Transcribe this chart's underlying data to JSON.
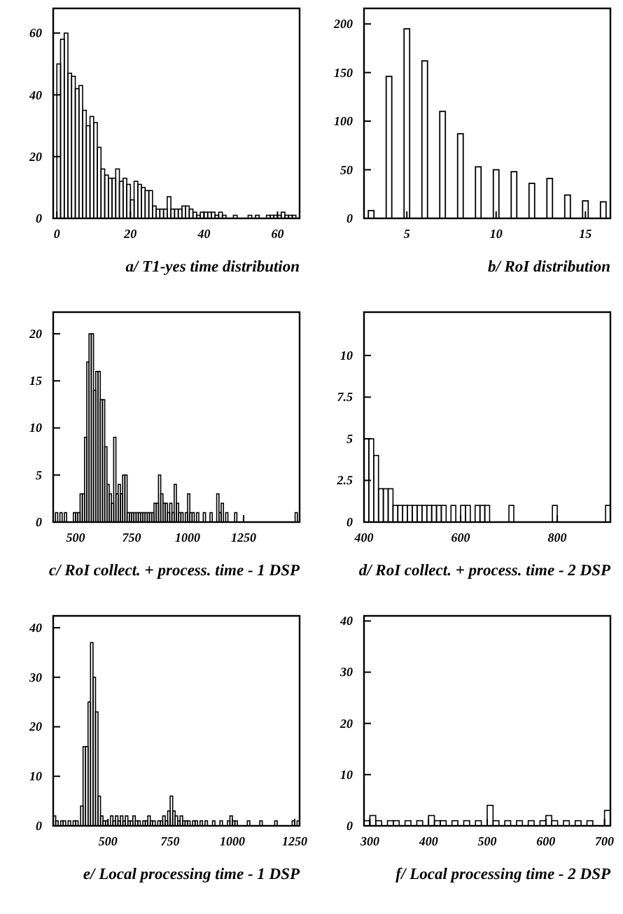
{
  "chart_data": [
    {
      "type": "histogram",
      "xlabel": "a/ T1-yes time distribution",
      "xlim": [
        -1,
        66
      ],
      "xticks": [
        0,
        20,
        40,
        60
      ],
      "ylim": [
        0,
        68
      ],
      "yticks": [
        0,
        20,
        40,
        60
      ],
      "color": "#000000",
      "bins": [
        0,
        1,
        2,
        3,
        4,
        5,
        6,
        7,
        8,
        9,
        10,
        11,
        12,
        13,
        14,
        15,
        16,
        17,
        18,
        19,
        20,
        21,
        22,
        23,
        24,
        25,
        26,
        27,
        28,
        29,
        30,
        31,
        32,
        33,
        34,
        35,
        36,
        37,
        38,
        39,
        40,
        41,
        42,
        43,
        44,
        45,
        46,
        47,
        48,
        49,
        50,
        51,
        52,
        53,
        54,
        55,
        56,
        57,
        58,
        59,
        60,
        61,
        62,
        63,
        64,
        65
      ],
      "values": [
        50,
        58,
        60,
        47,
        46,
        42,
        43,
        35,
        30,
        33,
        31,
        23,
        16,
        14,
        13,
        13,
        16,
        12,
        13,
        11,
        6,
        12,
        11,
        10,
        9,
        9,
        4,
        3,
        3,
        3,
        7,
        3,
        3,
        3,
        4,
        4,
        3,
        2,
        1,
        2,
        2,
        2,
        2,
        1,
        2,
        1,
        0,
        0,
        1,
        0,
        0,
        0,
        1,
        0,
        1,
        0,
        0,
        1,
        1,
        1,
        1,
        2,
        1,
        1,
        1
      ]
    },
    {
      "type": "bar",
      "xlabel": "b/ RoI distribution",
      "xlim": [
        2.6,
        16.4
      ],
      "xticks": [
        5,
        10,
        15
      ],
      "ylim": [
        0,
        216
      ],
      "yticks": [
        0,
        50,
        100,
        150,
        200
      ],
      "color": "#000000",
      "x": [
        3,
        4,
        5,
        6,
        7,
        8,
        9,
        10,
        11,
        12,
        13,
        14,
        15,
        16
      ],
      "values": [
        8,
        146,
        195,
        162,
        110,
        87,
        53,
        50,
        48,
        36,
        41,
        24,
        18,
        17
      ]
    },
    {
      "type": "histogram",
      "xlabel": "c/ RoI collect. + process. time - 1 DSP",
      "xlim": [
        400,
        1500
      ],
      "xticks": [
        500,
        750,
        1000,
        1250
      ],
      "ylim": [
        0,
        22.3
      ],
      "yticks": [
        0,
        5,
        10,
        15,
        20
      ],
      "color": "#000000",
      "bins": [
        400,
        410,
        420,
        430,
        440,
        450,
        460,
        470,
        480,
        490,
        500,
        510,
        520,
        530,
        540,
        550,
        560,
        570,
        580,
        590,
        600,
        610,
        620,
        630,
        640,
        650,
        660,
        670,
        680,
        690,
        700,
        710,
        720,
        730,
        740,
        750,
        760,
        770,
        780,
        790,
        800,
        810,
        820,
        830,
        840,
        850,
        860,
        870,
        880,
        890,
        900,
        910,
        920,
        930,
        940,
        950,
        960,
        970,
        980,
        990,
        1000,
        1010,
        1020,
        1030,
        1040,
        1050,
        1060,
        1070,
        1080,
        1090,
        1100,
        1110,
        1120,
        1130,
        1140,
        1150,
        1160,
        1170,
        1180,
        1190,
        1200,
        1210,
        1220,
        1230,
        1240,
        1250,
        1260,
        1270,
        1280,
        1290,
        1300,
        1310,
        1320,
        1330,
        1340,
        1350,
        1360,
        1370,
        1380,
        1390,
        1400,
        1410,
        1420,
        1430,
        1440,
        1450,
        1460,
        1470,
        1480,
        1490,
        1500
      ],
      "values": [
        0,
        1,
        0,
        1,
        0,
        1,
        0,
        0,
        0,
        1,
        1,
        1,
        3,
        3,
        9,
        17,
        20,
        20,
        14,
        16,
        16,
        13,
        13,
        8,
        4,
        3,
        2,
        9,
        3,
        4,
        3,
        5,
        5,
        1,
        1,
        1,
        1,
        1,
        1,
        1,
        1,
        1,
        1,
        1,
        1,
        2,
        2,
        5,
        3,
        2,
        2,
        1,
        2,
        1,
        4,
        2,
        1,
        1,
        0,
        1,
        3,
        1,
        1,
        0,
        1,
        0,
        0,
        1,
        0,
        0,
        1,
        0,
        0,
        3,
        1,
        2,
        0,
        1,
        0,
        0,
        0,
        1,
        0,
        0,
        0,
        0,
        0,
        0,
        0,
        0,
        0,
        0,
        0,
        0,
        0,
        0,
        0,
        0,
        0,
        0,
        0,
        0,
        0,
        0,
        0,
        0,
        0,
        0,
        1,
        0
      ]
    },
    {
      "type": "histogram",
      "xlabel": "d/ RoI collect. + process. time - 2 DSP",
      "xlim": [
        400,
        910
      ],
      "xticks": [
        400,
        600,
        800
      ],
      "ylim": [
        0,
        12.6
      ],
      "yticks": [
        0,
        2.5,
        5,
        7.5,
        10
      ],
      "color": "#000000",
      "bins": [
        400,
        410,
        420,
        430,
        440,
        450,
        460,
        470,
        480,
        490,
        500,
        510,
        520,
        530,
        540,
        550,
        560,
        570,
        580,
        590,
        600,
        610,
        620,
        630,
        640,
        650,
        660,
        670,
        680,
        690,
        700,
        710,
        720,
        730,
        740,
        750,
        760,
        770,
        780,
        790,
        800,
        810,
        820,
        830,
        840,
        850,
        860,
        870,
        880,
        890,
        900,
        910
      ],
      "values": [
        5,
        5,
        4,
        2,
        2,
        2,
        1,
        1,
        1,
        1,
        1,
        1,
        1,
        1,
        1,
        1,
        1,
        0,
        1,
        0,
        1,
        1,
        0,
        1,
        1,
        1,
        0,
        0,
        0,
        0,
        1,
        0,
        0,
        0,
        0,
        0,
        0,
        0,
        0,
        1,
        0,
        0,
        0,
        0,
        0,
        0,
        0,
        0,
        0,
        0,
        1
      ]
    },
    {
      "type": "histogram",
      "xlabel": "e/ Local processing time - 1 DSP",
      "xlim": [
        280,
        1270
      ],
      "xticks": [
        500,
        750,
        1000,
        1250
      ],
      "ylim": [
        0,
        42.4
      ],
      "yticks": [
        0,
        10,
        20,
        30,
        40
      ],
      "color": "#000000",
      "bins": [
        280,
        290,
        300,
        310,
        320,
        330,
        340,
        350,
        360,
        370,
        380,
        390,
        400,
        410,
        420,
        430,
        440,
        450,
        460,
        470,
        480,
        490,
        500,
        510,
        520,
        530,
        540,
        550,
        560,
        570,
        580,
        590,
        600,
        610,
        620,
        630,
        640,
        650,
        660,
        670,
        680,
        690,
        700,
        710,
        720,
        730,
        740,
        750,
        760,
        770,
        780,
        790,
        800,
        810,
        820,
        830,
        840,
        850,
        860,
        870,
        880,
        890,
        900,
        910,
        920,
        930,
        940,
        950,
        960,
        970,
        980,
        990,
        1000,
        1010,
        1020,
        1030,
        1040,
        1050,
        1060,
        1070,
        1080,
        1090,
        1100,
        1110,
        1120,
        1130,
        1140,
        1150,
        1160,
        1170,
        1180,
        1190,
        1200,
        1210,
        1220,
        1230,
        1240,
        1250,
        1260,
        1270
      ],
      "values": [
        2,
        1,
        0,
        1,
        1,
        0,
        1,
        0,
        1,
        1,
        0,
        4,
        16,
        16,
        25,
        37,
        30,
        23,
        6,
        2,
        1,
        1,
        0,
        2,
        1,
        2,
        1,
        2,
        1,
        2,
        1,
        1,
        2,
        1,
        1,
        0,
        1,
        1,
        2,
        1,
        1,
        0,
        1,
        1,
        2,
        1,
        3,
        6,
        3,
        2,
        1,
        2,
        1,
        1,
        1,
        0,
        1,
        1,
        0,
        1,
        0,
        1,
        0,
        0,
        1,
        0,
        0,
        1,
        0,
        0,
        1,
        2,
        1,
        1,
        0,
        0,
        0,
        0,
        1,
        0,
        0,
        0,
        0,
        1,
        0,
        0,
        0,
        0,
        0,
        1,
        0,
        0,
        0,
        0,
        0,
        0,
        1,
        0,
        1
      ]
    },
    {
      "type": "histogram",
      "xlabel": "f/ Local processing time - 2 DSP",
      "xlim": [
        290,
        710
      ],
      "xticks": [
        300,
        400,
        500,
        600,
        700
      ],
      "ylim": [
        0,
        41
      ],
      "yticks": [
        0,
        10,
        20,
        30,
        40
      ],
      "color": "#000000",
      "bins": [
        290,
        300,
        310,
        320,
        330,
        340,
        350,
        360,
        370,
        380,
        390,
        400,
        410,
        420,
        430,
        440,
        450,
        460,
        470,
        480,
        490,
        500,
        510,
        520,
        530,
        540,
        550,
        560,
        570,
        580,
        590,
        600,
        610,
        620,
        630,
        640,
        650,
        660,
        670,
        680,
        690,
        700,
        710
      ],
      "values": [
        1,
        2,
        1,
        0,
        1,
        1,
        0,
        1,
        0,
        1,
        0,
        2,
        1,
        1,
        0,
        1,
        0,
        1,
        0,
        1,
        0,
        4,
        1,
        0,
        1,
        0,
        1,
        0,
        1,
        0,
        1,
        2,
        1,
        0,
        1,
        0,
        1,
        0,
        1,
        0,
        0,
        3
      ]
    }
  ]
}
